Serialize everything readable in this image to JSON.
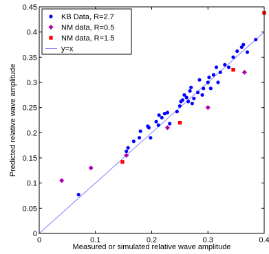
{
  "chart_data": {
    "type": "scatter",
    "xlabel": "Measured or simulated relative wave amplitude",
    "ylabel": "Predicted relative wave amplitude",
    "xlim": [
      0,
      0.4
    ],
    "ylim": [
      0,
      0.45
    ],
    "xticks": [
      0,
      0.1,
      0.2,
      0.3,
      0.4
    ],
    "xtick_labels": [
      "0",
      "0.1",
      "0.2",
      "0.3",
      "0.4"
    ],
    "yticks": [
      0,
      0.05,
      0.1,
      0.15,
      0.2,
      0.25,
      0.3,
      0.35,
      0.4,
      0.45
    ],
    "ytick_labels": [
      "0",
      "0.05",
      "0.1",
      "0.15",
      "0.2",
      "0.25",
      "0.3",
      "0.35",
      "0.4",
      "0.45"
    ],
    "grid": false,
    "legend_position": "top-left",
    "series": [
      {
        "name": "KB Data, R=2.7",
        "marker": "circle",
        "color": "#0000ff",
        "points": [
          [
            0.07,
            0.077
          ],
          [
            0.155,
            0.163
          ],
          [
            0.158,
            0.17
          ],
          [
            0.168,
            0.183
          ],
          [
            0.178,
            0.19
          ],
          [
            0.18,
            0.203
          ],
          [
            0.193,
            0.213
          ],
          [
            0.195,
            0.21
          ],
          [
            0.198,
            0.19
          ],
          [
            0.208,
            0.222
          ],
          [
            0.212,
            0.215
          ],
          [
            0.213,
            0.235
          ],
          [
            0.218,
            0.23
          ],
          [
            0.223,
            0.238
          ],
          [
            0.228,
            0.24
          ],
          [
            0.232,
            0.218
          ],
          [
            0.245,
            0.242
          ],
          [
            0.25,
            0.253
          ],
          [
            0.252,
            0.262
          ],
          [
            0.255,
            0.265
          ],
          [
            0.258,
            0.275
          ],
          [
            0.262,
            0.27
          ],
          [
            0.265,
            0.262
          ],
          [
            0.268,
            0.283
          ],
          [
            0.27,
            0.29
          ],
          [
            0.272,
            0.258
          ],
          [
            0.275,
            0.268
          ],
          [
            0.282,
            0.28
          ],
          [
            0.285,
            0.305
          ],
          [
            0.29,
            0.275
          ],
          [
            0.292,
            0.288
          ],
          [
            0.3,
            0.3
          ],
          [
            0.302,
            0.31
          ],
          [
            0.305,
            0.288
          ],
          [
            0.31,
            0.315
          ],
          [
            0.315,
            0.33
          ],
          [
            0.318,
            0.3
          ],
          [
            0.322,
            0.32
          ],
          [
            0.33,
            0.335
          ],
          [
            0.337,
            0.33
          ],
          [
            0.345,
            0.35
          ],
          [
            0.352,
            0.362
          ],
          [
            0.36,
            0.37
          ],
          [
            0.363,
            0.375
          ],
          [
            0.37,
            0.36
          ],
          [
            0.385,
            0.385
          ]
        ]
      },
      {
        "name": "NM data, R=0.5",
        "marker": "diamond",
        "color": "#b000b0",
        "points": [
          [
            0.04,
            0.105
          ],
          [
            0.092,
            0.13
          ],
          [
            0.155,
            0.155
          ],
          [
            0.228,
            0.21
          ],
          [
            0.3,
            0.25
          ],
          [
            0.365,
            0.32
          ]
        ]
      },
      {
        "name": "NM data, R=1.5",
        "marker": "square",
        "color": "#ff0000",
        "points": [
          [
            0.148,
            0.142
          ],
          [
            0.25,
            0.22
          ],
          [
            0.345,
            0.325
          ],
          [
            0.4,
            0.438
          ]
        ]
      },
      {
        "name": "y=x",
        "marker": "line",
        "color": "#7f7fff",
        "points": [
          [
            0,
            0
          ],
          [
            0.4,
            0.4
          ]
        ]
      }
    ]
  }
}
